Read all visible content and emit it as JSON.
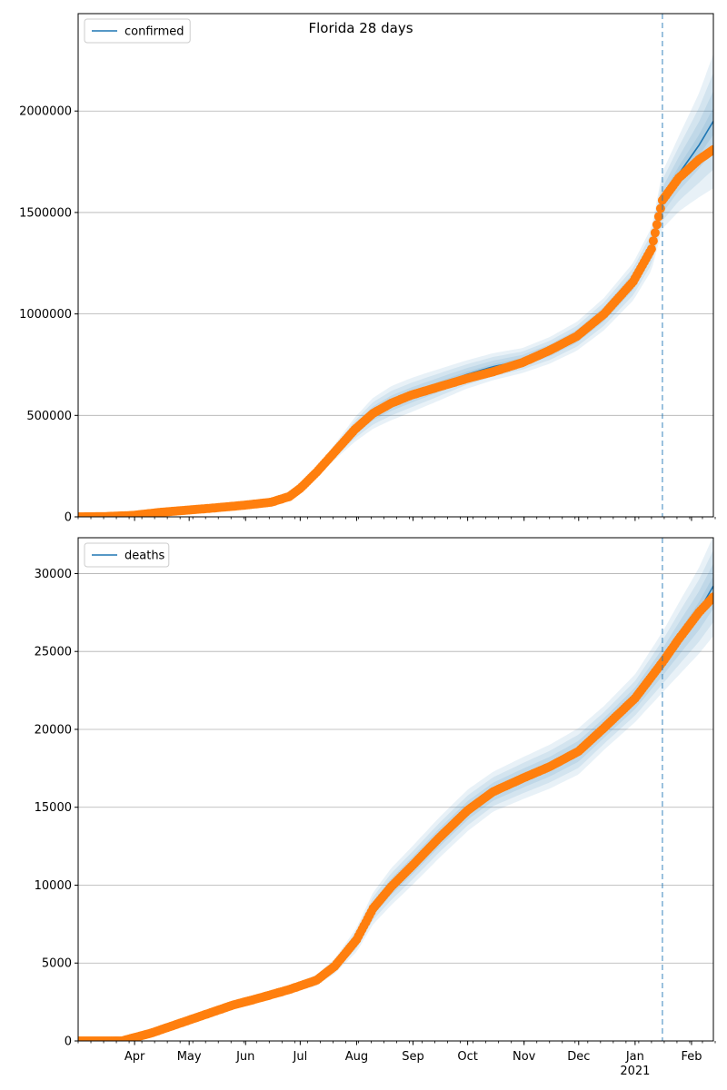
{
  "figure": {
    "suptitle": "Florida 28 days",
    "forecast_start": "2021-01-16",
    "colors": {
      "model_line": "#1f77b4",
      "observed_points": "#ff7f0e",
      "band": "#1f77b4",
      "grid": "#b0b0b0",
      "forecast_marker": "#1f77b4"
    }
  },
  "chart_data": [
    {
      "type": "line",
      "title": "",
      "xlabel": "",
      "ylabel": "",
      "xlim": [
        "2020-03-01",
        "2021-02-13"
      ],
      "ylim": [
        0,
        2480000
      ],
      "yticks": [
        0,
        500000,
        1000000,
        1500000,
        2000000
      ],
      "ytick_labels": [
        "0",
        "500000",
        "1000000",
        "1500000",
        "2000000"
      ],
      "grid": "horizontal",
      "legend": {
        "position": "top-left",
        "entries": [
          "confirmed"
        ]
      },
      "x_dates": [
        "2020-03-01",
        "2020-03-15",
        "2020-03-31",
        "2020-04-15",
        "2020-04-30",
        "2020-05-15",
        "2020-05-31",
        "2020-06-15",
        "2020-06-25",
        "2020-07-01",
        "2020-07-10",
        "2020-07-20",
        "2020-07-31",
        "2020-08-10",
        "2020-08-20",
        "2020-08-31",
        "2020-09-15",
        "2020-09-30",
        "2020-10-15",
        "2020-10-31",
        "2020-11-15",
        "2020-11-30",
        "2020-12-15",
        "2020-12-31",
        "2021-01-10",
        "2021-01-16",
        "2021-01-25",
        "2021-02-05",
        "2021-02-13"
      ],
      "series": [
        {
          "name": "confirmed",
          "role": "model",
          "values": [
            0,
            1000,
            7000,
            22000,
            33000,
            44000,
            57000,
            72000,
            100000,
            140000,
            220000,
            320000,
            430000,
            510000,
            560000,
            600000,
            650000,
            700000,
            740000,
            770000,
            820000,
            890000,
            1000000,
            1160000,
            1320000,
            1560000,
            1690000,
            1830000,
            1950000
          ]
        },
        {
          "name": "",
          "role": "observed",
          "values": [
            0,
            1000,
            7000,
            22000,
            33000,
            44000,
            57000,
            72000,
            100000,
            140000,
            220000,
            320000,
            430000,
            510000,
            560000,
            600000,
            640000,
            680000,
            715000,
            760000,
            820000,
            890000,
            1000000,
            1160000,
            1320000,
            1560000,
            1670000,
            1760000,
            1810000
          ]
        }
      ],
      "band_half_width_fraction": [
        0.04,
        0.05,
        0.05,
        0.05,
        0.05,
        0.06,
        0.06,
        0.07,
        0.08,
        0.09,
        0.1,
        0.12,
        0.14,
        0.15,
        0.15,
        0.14,
        0.12,
        0.1,
        0.09,
        0.08,
        0.08,
        0.08,
        0.08,
        0.08,
        0.08,
        0.09,
        0.11,
        0.14,
        0.17
      ]
    },
    {
      "type": "line",
      "title": "",
      "xlabel": "",
      "ylabel": "",
      "xlim": [
        "2020-03-01",
        "2021-02-13"
      ],
      "ylim": [
        0,
        32300
      ],
      "yticks": [
        0,
        5000,
        10000,
        15000,
        20000,
        25000,
        30000
      ],
      "ytick_labels": [
        "0",
        "5000",
        "10000",
        "15000",
        "20000",
        "25000",
        "30000"
      ],
      "xtick_labels": [
        "Apr",
        "May",
        "Jun",
        "Jul",
        "Aug",
        "Sep",
        "Oct",
        "Nov",
        "Dec",
        "Jan",
        "Feb"
      ],
      "xtick_year_label": "2021",
      "grid": "horizontal",
      "legend": {
        "position": "top-left",
        "entries": [
          "deaths"
        ]
      },
      "x_dates": [
        "2020-03-01",
        "2020-03-25",
        "2020-04-10",
        "2020-04-25",
        "2020-05-10",
        "2020-05-25",
        "2020-06-10",
        "2020-06-25",
        "2020-07-10",
        "2020-07-20",
        "2020-08-01",
        "2020-08-10",
        "2020-08-20",
        "2020-09-01",
        "2020-09-15",
        "2020-10-01",
        "2020-10-15",
        "2020-11-01",
        "2020-11-15",
        "2020-12-01",
        "2020-12-15",
        "2021-01-01",
        "2021-01-16",
        "2021-01-25",
        "2021-02-05",
        "2021-02-13"
      ],
      "series": [
        {
          "name": "deaths",
          "role": "model",
          "values": [
            0,
            0,
            500,
            1100,
            1700,
            2300,
            2800,
            3300,
            3900,
            4800,
            6500,
            8500,
            9900,
            11300,
            13000,
            14800,
            16000,
            16900,
            17600,
            18600,
            20100,
            22000,
            24300,
            25800,
            27600,
            29200
          ]
        },
        {
          "name": "",
          "role": "observed",
          "values": [
            0,
            0,
            500,
            1100,
            1700,
            2300,
            2800,
            3300,
            3900,
            4800,
            6500,
            8500,
            9900,
            11300,
            13000,
            14800,
            16000,
            16900,
            17600,
            18600,
            20100,
            22000,
            24300,
            25800,
            27500,
            28500
          ]
        }
      ],
      "band_half_width_fraction": [
        0.05,
        0.05,
        0.06,
        0.06,
        0.06,
        0.06,
        0.07,
        0.08,
        0.09,
        0.1,
        0.12,
        0.12,
        0.12,
        0.11,
        0.1,
        0.09,
        0.08,
        0.08,
        0.08,
        0.08,
        0.07,
        0.07,
        0.08,
        0.09,
        0.1,
        0.11
      ]
    }
  ]
}
